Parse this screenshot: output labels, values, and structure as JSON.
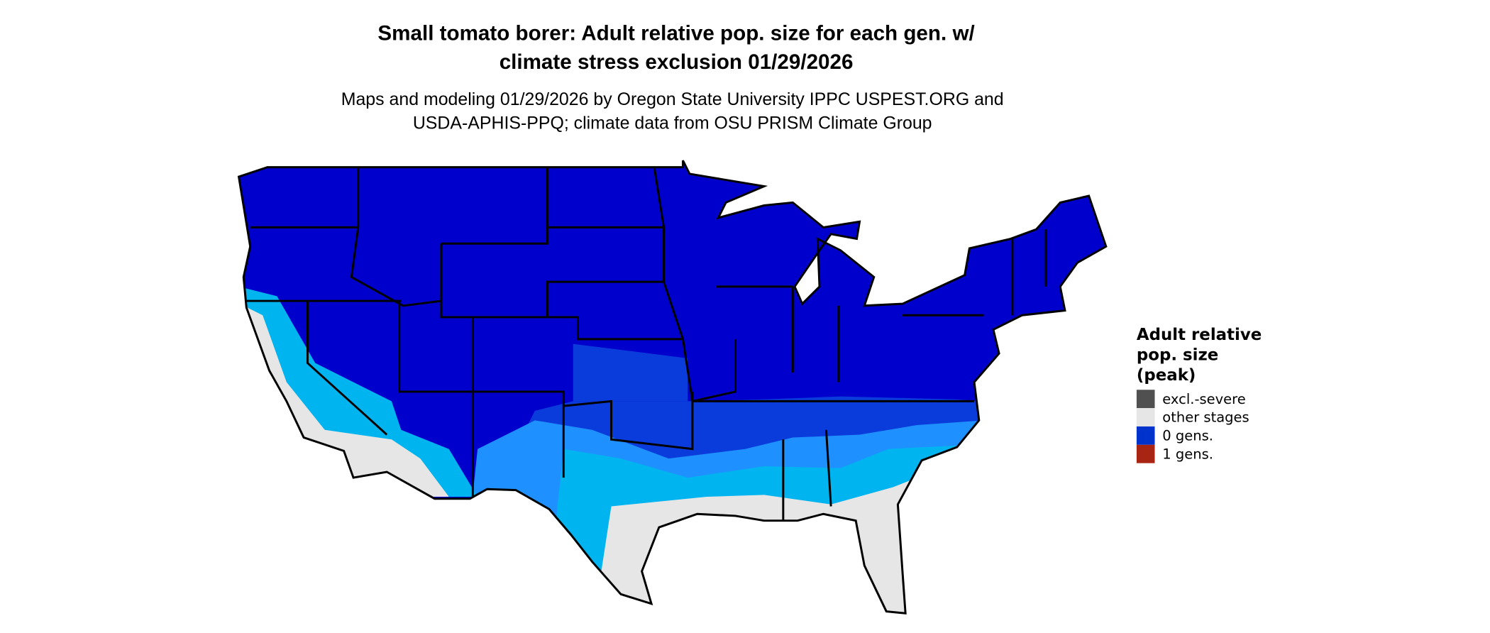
{
  "title": {
    "line1": "Small tomato borer: Adult relative pop. size for each gen. w/",
    "line2": "climate stress exclusion 01/29/2026"
  },
  "subtitle": {
    "line1": "Maps and modeling 01/29/2026 by Oregon State University IPPC USPEST.ORG and",
    "line2": "USDA-APHIS-PPQ; climate data from OSU PRISM Climate Group"
  },
  "map": {
    "region": "Contiguous United States",
    "colors": {
      "main_blue": "#0000CC",
      "mid_blue": "#0A3CDC",
      "light_blue": "#1E90FF",
      "cyan": "#00B4F0",
      "gray": "#E6E6E6",
      "border": "#000000"
    }
  },
  "legend": {
    "title_lines": [
      "Adult relative",
      "pop. size",
      "(peak)"
    ],
    "items": [
      {
        "label": "excl.-severe",
        "color": "#505050"
      },
      {
        "label": "other stages",
        "color": "#E6E6E6"
      },
      {
        "label": "0 gens.",
        "color": "#0033CC"
      },
      {
        "label": "1 gens.",
        "color": "#A82514"
      }
    ]
  }
}
